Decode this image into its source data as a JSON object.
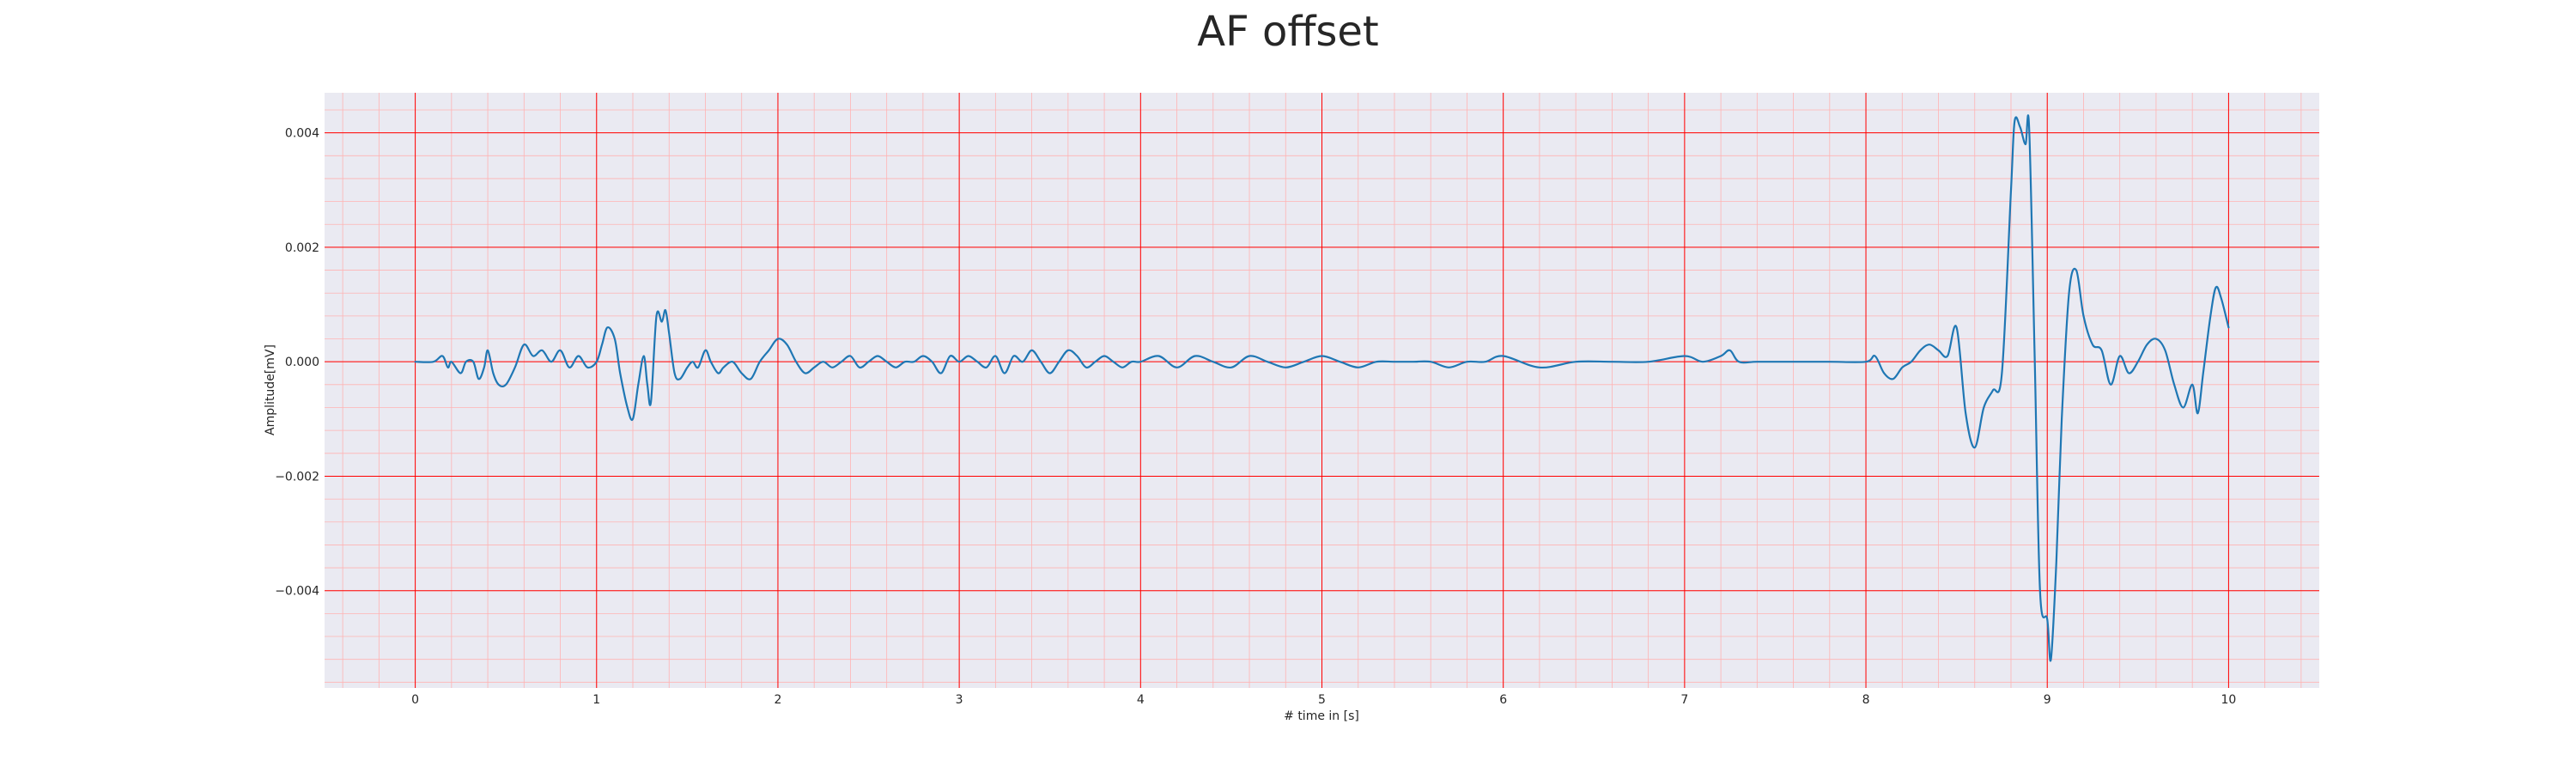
{
  "chart_data": {
    "type": "line",
    "title": "AF offset",
    "xlabel": "# time in [s]",
    "ylabel": "Amplitude[mV]",
    "xlim": [
      -0.5,
      10.5
    ],
    "ylim": [
      -0.0057,
      0.0047
    ],
    "xticks": [
      0,
      1,
      2,
      3,
      4,
      5,
      6,
      7,
      8,
      9,
      10
    ],
    "xtick_labels": [
      "0",
      "1",
      "2",
      "3",
      "4",
      "5",
      "6",
      "7",
      "8",
      "9",
      "10"
    ],
    "yticks": [
      0.004,
      0.002,
      0.0,
      -0.002,
      -0.004
    ],
    "ytick_labels": [
      "0.004",
      "0.002",
      "0.000",
      "−0.002",
      "−0.004"
    ],
    "grid": true,
    "colors": {
      "background": "#eaeaf2",
      "major_grid": "#ff0000",
      "minor_grid": "#ffb3b3",
      "line": "#1f77b4"
    },
    "series": [
      {
        "name": "AF offset",
        "x": [
          0.0,
          0.1,
          0.15,
          0.18,
          0.2,
          0.25,
          0.28,
          0.32,
          0.35,
          0.38,
          0.4,
          0.43,
          0.46,
          0.5,
          0.55,
          0.6,
          0.65,
          0.7,
          0.75,
          0.8,
          0.85,
          0.9,
          0.95,
          1.0,
          1.03,
          1.06,
          1.1,
          1.13,
          1.17,
          1.2,
          1.23,
          1.26,
          1.28,
          1.3,
          1.33,
          1.36,
          1.38,
          1.4,
          1.43,
          1.46,
          1.5,
          1.53,
          1.56,
          1.6,
          1.63,
          1.67,
          1.7,
          1.75,
          1.8,
          1.85,
          1.9,
          1.95,
          2.0,
          2.05,
          2.1,
          2.15,
          2.2,
          2.25,
          2.3,
          2.35,
          2.4,
          2.45,
          2.5,
          2.55,
          2.6,
          2.65,
          2.7,
          2.75,
          2.8,
          2.85,
          2.9,
          2.95,
          3.0,
          3.05,
          3.1,
          3.15,
          3.2,
          3.25,
          3.3,
          3.35,
          3.4,
          3.45,
          3.5,
          3.55,
          3.6,
          3.65,
          3.7,
          3.75,
          3.8,
          3.85,
          3.9,
          3.95,
          4.0,
          4.1,
          4.2,
          4.3,
          4.4,
          4.5,
          4.6,
          4.7,
          4.8,
          4.9,
          5.0,
          5.1,
          5.2,
          5.3,
          5.4,
          5.5,
          5.6,
          5.7,
          5.8,
          5.9,
          6.0,
          6.2,
          6.4,
          6.6,
          6.8,
          7.0,
          7.1,
          7.2,
          7.25,
          7.3,
          7.4,
          7.6,
          7.8,
          8.0,
          8.05,
          8.1,
          8.15,
          8.2,
          8.25,
          8.3,
          8.35,
          8.4,
          8.45,
          8.5,
          8.55,
          8.6,
          8.65,
          8.7,
          8.75,
          8.8,
          8.82,
          8.85,
          8.88,
          8.9,
          8.93,
          8.96,
          9.0,
          9.02,
          9.05,
          9.08,
          9.12,
          9.16,
          9.2,
          9.25,
          9.3,
          9.35,
          9.4,
          9.45,
          9.5,
          9.55,
          9.6,
          9.65,
          9.7,
          9.75,
          9.8,
          9.83,
          9.86,
          9.9,
          9.93,
          9.96,
          10.0
        ],
        "y": [
          0.0,
          0.0,
          0.0001,
          -0.0001,
          0.0,
          -0.0002,
          0.0,
          0.0,
          -0.0003,
          -0.0001,
          0.0002,
          -0.0002,
          -0.0004,
          -0.0004,
          -0.0001,
          0.0003,
          0.0001,
          0.0002,
          0.0,
          0.0002,
          -0.0001,
          0.0001,
          -0.0001,
          0.0,
          0.0003,
          0.0006,
          0.0004,
          -0.0002,
          -0.0008,
          -0.001,
          -0.0004,
          0.0001,
          -0.0004,
          -0.0007,
          0.0008,
          0.0007,
          0.0009,
          0.0005,
          -0.0002,
          -0.0003,
          -0.0001,
          0.0,
          -0.0001,
          0.0002,
          0.0,
          -0.0002,
          -0.0001,
          0.0,
          -0.0002,
          -0.0003,
          0.0,
          0.0002,
          0.0004,
          0.0003,
          0.0,
          -0.0002,
          -0.0001,
          0.0,
          -0.0001,
          0.0,
          0.0001,
          -0.0001,
          0.0,
          0.0001,
          0.0,
          -0.0001,
          0.0,
          0.0,
          0.0001,
          0.0,
          -0.0002,
          0.0001,
          0.0,
          0.0001,
          0.0,
          -0.0001,
          0.0001,
          -0.0002,
          0.0001,
          0.0,
          0.0002,
          0.0,
          -0.0002,
          0.0,
          0.0002,
          0.0001,
          -0.0001,
          0.0,
          0.0001,
          0.0,
          -0.0001,
          0.0,
          0.0,
          0.0001,
          -0.0001,
          0.0001,
          0.0,
          -0.0001,
          0.0001,
          0.0,
          -0.0001,
          0.0,
          0.0001,
          0.0,
          -0.0001,
          0.0,
          0.0,
          0.0,
          0.0,
          -0.0001,
          0.0,
          0.0,
          0.0001,
          -0.0001,
          0.0,
          0.0,
          0.0,
          0.0001,
          0.0,
          0.0001,
          0.0002,
          0.0,
          0.0,
          0.0,
          0.0,
          0.0,
          0.0001,
          -0.0002,
          -0.0003,
          -0.0001,
          0.0,
          0.0002,
          0.0003,
          0.0002,
          0.0001,
          0.0006,
          -0.0009,
          -0.0015,
          -0.0008,
          -0.0005,
          -0.0002,
          0.003,
          0.0042,
          0.0041,
          0.0038,
          0.0041,
          0.0002,
          -0.004,
          -0.0045,
          -0.0052,
          -0.0035,
          -0.001,
          0.0012,
          0.0016,
          0.0008,
          0.0003,
          0.0002,
          -0.0004,
          0.0001,
          -0.0002,
          0.0,
          0.0003,
          0.0004,
          0.0002,
          -0.0004,
          -0.0008,
          -0.0004,
          -0.0009,
          -0.0002,
          0.0008,
          0.0013,
          0.0011,
          0.0006
        ]
      }
    ]
  }
}
